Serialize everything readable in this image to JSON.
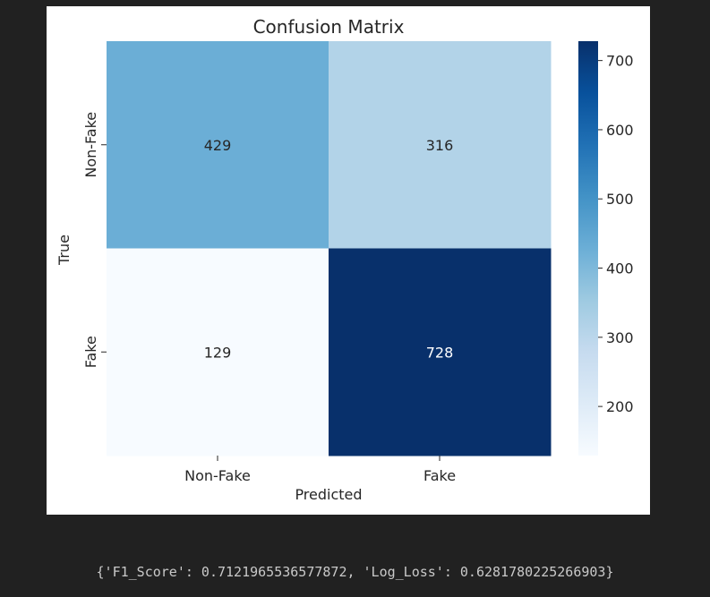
{
  "chart_data": {
    "type": "heatmap",
    "title": "Confusion Matrix",
    "xlabel": "Predicted",
    "ylabel": "True",
    "x_categories": [
      "Non-Fake",
      "Fake"
    ],
    "y_categories": [
      "Non-Fake",
      "Fake"
    ],
    "values": [
      [
        429,
        316
      ],
      [
        129,
        728
      ]
    ],
    "colormap": "Blues",
    "colormap_stops": [
      "#f7fbff",
      "#deebf7",
      "#c6dbef",
      "#9ecae1",
      "#6baed6",
      "#4292c6",
      "#2171b5",
      "#08519c",
      "#08306b"
    ],
    "colorbar_ticks": [
      200,
      300,
      400,
      500,
      600,
      700
    ],
    "colorbar_range": [
      129,
      728
    ],
    "legend": "colorbar-right"
  },
  "output": {
    "text": "{'F1_Score': 0.7121965536577872, 'Log_Loss': 0.6281780225266903}"
  }
}
